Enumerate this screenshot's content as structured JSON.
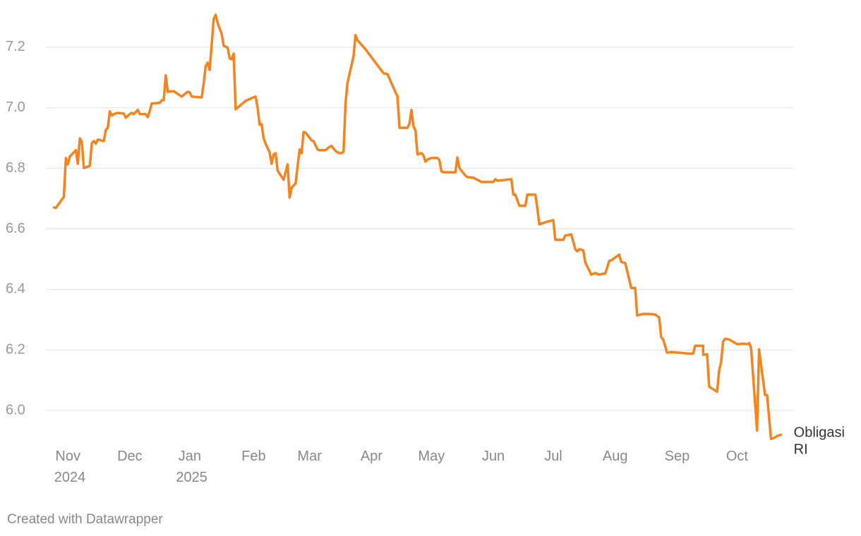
{
  "chart_data": {
    "type": "line",
    "credit": "Created with Datawrapper",
    "x": [
      -8,
      -7,
      -3,
      -2,
      -1,
      0,
      3,
      4,
      5,
      6,
      7,
      10,
      11,
      12,
      13,
      14,
      17,
      18,
      19,
      20,
      21,
      22,
      24,
      27,
      28,
      30,
      31,
      32,
      34,
      35,
      38,
      39,
      40,
      41,
      45,
      46,
      47,
      48,
      49,
      52,
      56,
      59,
      60,
      61,
      66,
      67,
      68,
      69,
      70,
      72,
      73,
      74,
      76,
      77,
      79,
      80,
      81,
      82,
      83,
      88,
      93,
      94,
      95,
      96,
      97,
      98,
      100,
      101,
      102,
      103,
      104,
      107,
      109,
      110,
      111,
      113,
      115,
      116,
      117,
      118,
      121,
      122,
      124,
      125,
      128,
      130,
      131,
      133,
      135,
      136,
      137,
      138,
      139,
      142,
      143,
      144,
      148,
      157,
      159,
      161,
      164,
      165,
      169,
      170,
      171,
      172,
      173,
      174,
      176,
      177,
      178,
      179,
      181,
      184,
      185,
      186,
      187,
      191,
      193,
      194,
      195,
      198,
      199,
      202,
      204,
      206,
      207,
      212,
      213,
      214,
      221,
      222,
      223,
      225,
      228,
      229,
      233,
      234,
      235,
      239,
      242,
      243,
      247,
      248,
      251,
      253,
      254,
      255,
      257,
      258,
      261,
      263,
      265,
      267,
      268,
      270,
      271,
      275,
      276,
      278,
      281,
      283,
      284,
      287,
      290,
      293,
      295,
      296,
      297,
      299,
      301,
      305,
      310,
      312,
      313,
      315,
      317,
      317,
      319,
      320,
      324,
      325,
      326,
      327,
      328,
      330,
      334,
      337,
      339,
      340,
      341,
      344,
      345,
      348,
      349,
      351,
      353,
      354,
      356
    ],
    "series": [
      {
        "name": "Obligasi RI",
        "color": "#f5841f",
        "values": [
          6.671,
          6.669,
          6.706,
          6.834,
          6.813,
          6.839,
          6.86,
          6.815,
          6.899,
          6.888,
          6.801,
          6.808,
          6.883,
          6.89,
          6.881,
          6.895,
          6.89,
          6.927,
          6.934,
          6.988,
          6.974,
          6.979,
          6.983,
          6.981,
          6.967,
          6.979,
          6.983,
          6.979,
          6.993,
          6.979,
          6.979,
          6.969,
          6.99,
          7.014,
          7.016,
          7.025,
          7.025,
          7.107,
          7.053,
          7.055,
          7.037,
          7.053,
          7.051,
          7.037,
          7.034,
          7.081,
          7.137,
          7.149,
          7.125,
          7.293,
          7.307,
          7.279,
          7.244,
          7.205,
          7.198,
          7.163,
          7.16,
          7.179,
          6.995,
          7.023,
          7.037,
          6.999,
          6.944,
          6.946,
          6.899,
          6.881,
          6.853,
          6.815,
          6.846,
          6.85,
          6.792,
          6.762,
          6.813,
          6.703,
          6.736,
          6.75,
          6.862,
          6.85,
          6.92,
          6.918,
          6.892,
          6.89,
          6.862,
          6.86,
          6.86,
          6.871,
          6.874,
          6.857,
          6.85,
          6.85,
          6.855,
          7.016,
          7.083,
          7.17,
          7.24,
          7.223,
          7.193,
          7.114,
          7.111,
          7.081,
          7.037,
          6.934,
          6.934,
          6.948,
          6.993,
          6.939,
          6.925,
          6.846,
          6.85,
          6.843,
          6.822,
          6.829,
          6.834,
          6.834,
          6.827,
          6.79,
          6.787,
          6.787,
          6.787,
          6.836,
          6.801,
          6.776,
          6.771,
          6.769,
          6.762,
          6.755,
          6.755,
          6.755,
          6.764,
          6.759,
          6.764,
          6.713,
          6.713,
          6.676,
          6.676,
          6.713,
          6.713,
          6.669,
          6.615,
          6.624,
          6.629,
          6.564,
          6.564,
          6.578,
          6.582,
          6.533,
          6.526,
          6.533,
          6.529,
          6.489,
          6.449,
          6.454,
          6.449,
          6.452,
          6.452,
          6.494,
          6.496,
          6.515,
          6.491,
          6.487,
          6.405,
          6.405,
          6.314,
          6.319,
          6.319,
          6.317,
          6.307,
          6.242,
          6.235,
          6.191,
          6.193,
          6.191,
          6.188,
          6.188,
          6.214,
          6.214,
          6.214,
          6.184,
          6.186,
          6.079,
          6.062,
          6.132,
          6.16,
          6.228,
          6.237,
          6.235,
          6.219,
          6.221,
          6.219,
          6.223,
          6.207,
          5.934,
          6.202,
          6.051,
          6.051,
          5.906,
          5.911,
          5.916,
          5.92
        ]
      }
    ],
    "xlim": [
      -12,
      360
    ],
    "xticks": [
      {
        "value": 0,
        "label": "Nov 2024"
      },
      {
        "value": 30,
        "label": "Dec"
      },
      {
        "value": 61,
        "label": "Jan 2025"
      },
      {
        "value": 92,
        "label": "Feb"
      },
      {
        "value": 120,
        "label": "Mar"
      },
      {
        "value": 151,
        "label": "Apr"
      },
      {
        "value": 181,
        "label": "May"
      },
      {
        "value": 212,
        "label": "Jun"
      },
      {
        "value": 242,
        "label": "Jul"
      },
      {
        "value": 273,
        "label": "Aug"
      },
      {
        "value": 304,
        "label": "Sep"
      },
      {
        "value": 334,
        "label": "Oct"
      }
    ],
    "ylim": [
      5.9,
      7.3
    ],
    "yticks": [
      {
        "value": 6,
        "label": "6.0"
      },
      6.2,
      6.4,
      6.6,
      6.8,
      {
        "value": 7,
        "label": "7.0"
      },
      7.2
    ],
    "grid": true
  }
}
